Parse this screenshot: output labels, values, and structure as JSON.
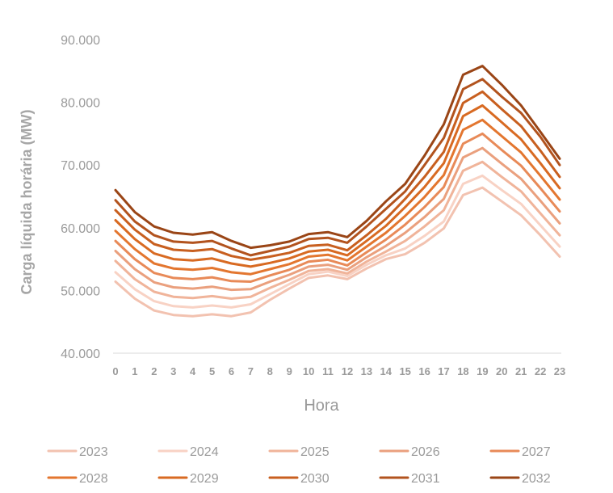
{
  "chart_data": {
    "type": "line",
    "title": "",
    "xlabel": "Hora",
    "ylabel": "Carga líquida horária (MW)",
    "ylim": [
      40000,
      90000
    ],
    "yticks": [
      40000,
      50000,
      60000,
      70000,
      80000,
      90000
    ],
    "ytick_labels": [
      "40.000",
      "50.000",
      "60.000",
      "70.000",
      "80.000",
      "90.000"
    ],
    "x": [
      "0",
      "1",
      "2",
      "3",
      "4",
      "5",
      "6",
      "7",
      "8",
      "9",
      "10",
      "11",
      "12",
      "13",
      "14",
      "15",
      "16",
      "17",
      "18",
      "19",
      "20",
      "21",
      "22",
      "23"
    ],
    "legend_position": "bottom",
    "grid": false,
    "series": [
      {
        "name": "2023",
        "color": "#f2c2b0",
        "values": [
          51400,
          48700,
          46800,
          46100,
          45900,
          46200,
          45900,
          46500,
          48500,
          50300,
          52000,
          52400,
          51800,
          53500,
          55000,
          55800,
          57600,
          59900,
          65200,
          66400,
          64200,
          62000,
          58800,
          55400
        ]
      },
      {
        "name": "2024",
        "color": "#f8d2c4",
        "values": [
          52900,
          50200,
          48300,
          47500,
          47300,
          47600,
          47300,
          47800,
          49400,
          51000,
          52600,
          53000,
          52300,
          54100,
          55600,
          56700,
          58700,
          61000,
          67000,
          68300,
          66000,
          63800,
          60400,
          57000
        ]
      },
      {
        "name": "2025",
        "color": "#f0b49a",
        "values": [
          54700,
          51800,
          49800,
          49000,
          48800,
          49100,
          48700,
          49000,
          50400,
          51700,
          53100,
          53400,
          52700,
          54600,
          56200,
          57900,
          60200,
          62800,
          69100,
          70500,
          68100,
          65800,
          62300,
          58800
        ]
      },
      {
        "name": "2026",
        "color": "#eaa07e",
        "values": [
          56300,
          53400,
          51300,
          50500,
          50300,
          50600,
          50100,
          50200,
          51400,
          52500,
          53800,
          54100,
          53300,
          55300,
          57100,
          59200,
          61700,
          64600,
          71200,
          72700,
          70200,
          67800,
          64300,
          60700
        ]
      },
      {
        "name": "2027",
        "color": "#e88a58",
        "values": [
          57900,
          55000,
          52800,
          52000,
          51800,
          52100,
          51500,
          51400,
          52400,
          53300,
          54600,
          54900,
          54000,
          56100,
          58100,
          60500,
          63300,
          66500,
          73400,
          75000,
          72400,
          69900,
          66300,
          62600
        ]
      },
      {
        "name": "2028",
        "color": "#e3762f",
        "values": [
          59500,
          56600,
          54300,
          53500,
          53300,
          53600,
          52900,
          52600,
          53400,
          54200,
          55400,
          55700,
          54800,
          57000,
          59200,
          61900,
          64900,
          68400,
          75600,
          77200,
          74600,
          72000,
          68300,
          64500
        ]
      },
      {
        "name": "2029",
        "color": "#d86a22",
        "values": [
          61200,
          58200,
          55900,
          55000,
          54800,
          55100,
          54300,
          53800,
          54400,
          55100,
          56200,
          56500,
          55600,
          57900,
          60300,
          63300,
          66500,
          70300,
          77800,
          79500,
          76800,
          74100,
          70300,
          66300
        ]
      },
      {
        "name": "2030",
        "color": "#c85f1f",
        "values": [
          62800,
          59700,
          57400,
          56500,
          56300,
          56600,
          55500,
          54900,
          55400,
          56000,
          57100,
          57300,
          56400,
          58800,
          61400,
          64600,
          68100,
          72100,
          79900,
          81700,
          78900,
          76200,
          72300,
          68100
        ]
      },
      {
        "name": "2031",
        "color": "#b2531e",
        "values": [
          64400,
          61000,
          58800,
          57800,
          57600,
          57900,
          56700,
          55600,
          56300,
          57000,
          58200,
          58400,
          57600,
          60200,
          63000,
          65800,
          70000,
          74300,
          82100,
          83700,
          80900,
          78300,
          74500,
          70000
        ]
      },
      {
        "name": "2032",
        "color": "#9a4516",
        "values": [
          66000,
          62500,
          60200,
          59200,
          58900,
          59300,
          57900,
          56800,
          57200,
          57800,
          59000,
          59300,
          58500,
          61100,
          64200,
          67000,
          71500,
          76500,
          84400,
          85800,
          82800,
          79500,
          75300,
          71000
        ]
      }
    ]
  }
}
